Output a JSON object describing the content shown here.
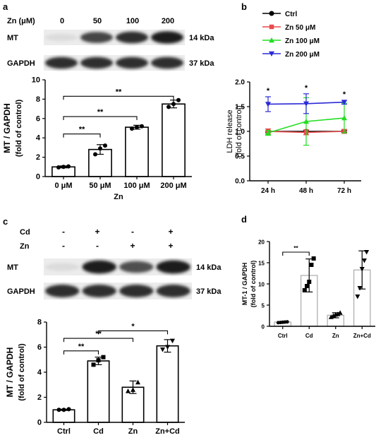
{
  "panels": {
    "a": {
      "letter": "a",
      "blot": {
        "treatment_label": "Zn (μM)",
        "lanes": [
          "0",
          "50",
          "100",
          "200"
        ],
        "rows": [
          {
            "name": "MT",
            "kda": "14 kDa",
            "intensity": [
              0.05,
              0.75,
              0.85,
              0.95
            ]
          },
          {
            "name": "GAPDH",
            "kda": "37 kDa",
            "intensity": [
              0.85,
              0.85,
              0.85,
              0.85
            ]
          }
        ]
      }
    },
    "b": {
      "letter": "b"
    },
    "c": {
      "letter": "c",
      "blot": {
        "conditions": [
          {
            "name": "Cd",
            "signs": [
              "-",
              "+",
              "-",
              "+"
            ]
          },
          {
            "name": "Zn",
            "signs": [
              "-",
              "-",
              "+",
              "+"
            ]
          }
        ],
        "rows": [
          {
            "name": "MT",
            "kda": "14 kDa",
            "intensity": [
              0.05,
              0.95,
              0.7,
              0.95
            ]
          },
          {
            "name": "GAPDH",
            "kda": "37 kDa",
            "intensity": [
              0.85,
              0.85,
              0.85,
              0.85
            ]
          }
        ]
      }
    },
    "d": {
      "letter": "d"
    }
  },
  "chart_data": [
    {
      "id": "a",
      "type": "bar",
      "categories": [
        "0 μM",
        "50 μM",
        "100 μM",
        "200 μM"
      ],
      "values": [
        1.0,
        2.8,
        5.1,
        7.5
      ],
      "errors": [
        0.1,
        0.5,
        0.2,
        0.4
      ],
      "points": [
        [
          0.95,
          1.0,
          1.05
        ],
        [
          2.3,
          2.9,
          3.2
        ],
        [
          4.95,
          5.1,
          5.2
        ],
        [
          7.2,
          7.5,
          7.9
        ]
      ],
      "xlabel": "Zn",
      "ylabel_line1": "MT / GAPDH",
      "ylabel_line2": "(fold of control)",
      "ylim": [
        0,
        10
      ],
      "yticks": [
        "0",
        "2",
        "4",
        "6",
        "8",
        "10"
      ],
      "significance": [
        {
          "from": 0,
          "to": 1,
          "label": "**",
          "level": 4.4
        },
        {
          "from": 0,
          "to": 2,
          "label": "**",
          "level": 6.2
        },
        {
          "from": 0,
          "to": 3,
          "label": "**",
          "level": 8.3
        }
      ]
    },
    {
      "id": "b",
      "type": "line",
      "x": [
        "24 h",
        "48 h",
        "72 h"
      ],
      "series": [
        {
          "name": "Ctrl",
          "color": "#000000",
          "marker": "circle",
          "values": [
            1.0,
            1.0,
            1.0
          ],
          "errors": [
            0.02,
            0.02,
            0.02
          ]
        },
        {
          "name": "Zn 50 μM",
          "color": "#e84a4a",
          "marker": "square",
          "values": [
            1.0,
            0.98,
            1.0
          ],
          "errors": [
            0.05,
            0.05,
            0.04
          ]
        },
        {
          "name": "Zn 100 μM",
          "color": "#22dd22",
          "marker": "triangle-up",
          "values": [
            0.97,
            1.2,
            1.27
          ],
          "errors": [
            0.05,
            0.48,
            0.3
          ]
        },
        {
          "name": "Zn 200 μM",
          "color": "#2a2ad8",
          "marker": "triangle-down",
          "values": [
            1.55,
            1.56,
            1.59
          ],
          "errors": [
            0.15,
            0.2,
            0.04
          ]
        }
      ],
      "stars": [
        "*",
        "*",
        "*"
      ],
      "ylabel_line1": "LDH release",
      "ylabel_line2": "(fold of control)",
      "ylim": [
        0,
        2.0
      ],
      "yticks": [
        "0.0",
        "0.5",
        "1.0",
        "1.5",
        "2.0"
      ],
      "legend": "top"
    },
    {
      "id": "c",
      "type": "bar",
      "categories": [
        "Ctrl",
        "Cd",
        "Zn",
        "Zn+Cd"
      ],
      "values": [
        1.0,
        4.9,
        2.8,
        6.1
      ],
      "errors": [
        0.05,
        0.3,
        0.5,
        0.5
      ],
      "points": [
        [
          1.0,
          1.0,
          1.05
        ],
        [
          4.6,
          4.95,
          5.2
        ],
        [
          2.5,
          2.6,
          3.2
        ],
        [
          5.8,
          6.0,
          6.5
        ]
      ],
      "ylabel_line1": "MT / GAPDH",
      "ylabel_line2": "(fold of control)",
      "ylim": [
        0,
        8
      ],
      "yticks": [
        "0",
        "2",
        "4",
        "6",
        "8"
      ],
      "significance": [
        {
          "from": 0,
          "to": 1,
          "label": "**",
          "level": 5.7
        },
        {
          "from": 0,
          "to": 2,
          "label": "**",
          "level": 6.7
        },
        {
          "from": 1,
          "to": 3,
          "label": "*",
          "level": 7.3
        }
      ]
    },
    {
      "id": "d",
      "type": "bar",
      "categories": [
        "Ctrl",
        "Cd",
        "Zn",
        "Zn+Cd"
      ],
      "values": [
        1.0,
        12.0,
        2.6,
        13.3
      ],
      "errors": [
        0.1,
        3.9,
        0.6,
        4.5
      ],
      "points": [
        [
          0.85,
          0.9,
          0.95,
          1.0,
          1.05
        ],
        [
          8.5,
          9.5,
          10.5,
          14.5,
          16.0
        ],
        [
          2.2,
          2.5,
          2.8,
          2.9,
          3.2
        ],
        [
          7.0,
          9.0,
          13.5,
          15.5,
          17.5
        ]
      ],
      "ylabel_line1": "MT-1 / GAPDH",
      "ylabel_line2": "(fold of control)",
      "ylim": [
        0,
        20
      ],
      "yticks": [
        "0",
        "5",
        "10",
        "15",
        "20"
      ],
      "significance": [
        {
          "from": 0,
          "to": 1,
          "label": "**",
          "level": 17.5
        }
      ]
    }
  ]
}
